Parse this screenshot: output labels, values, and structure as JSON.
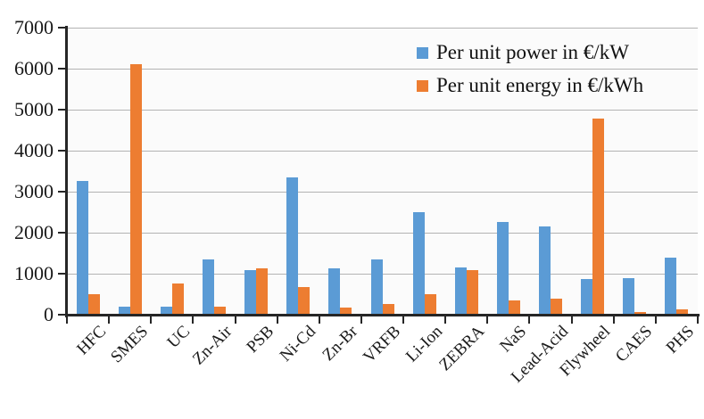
{
  "chart_data": {
    "type": "bar",
    "title": "",
    "xlabel": "",
    "ylabel": "",
    "categories": [
      "HFC",
      "SMES",
      "UC",
      "Zn-Air",
      "PSB",
      "Ni-Cd",
      "Zn-Br",
      "VRFB",
      "Li-Ion",
      "ZEBRA",
      "NaS",
      "Lead-Acid",
      "Flywheel",
      "CAES",
      "PHS"
    ],
    "series": [
      {
        "name": "Per unit power in €/kW",
        "color": "#5B9BD5",
        "values": [
          3250,
          200,
          200,
          1350,
          1080,
          3350,
          1130,
          1350,
          2500,
          1150,
          2250,
          2150,
          870,
          890,
          1400
        ]
      },
      {
        "name": "Per unit energy in €/kWh",
        "color": "#ED7D31",
        "values": [
          500,
          6100,
          750,
          200,
          1130,
          680,
          180,
          250,
          500,
          1080,
          340,
          400,
          4780,
          60,
          130
        ]
      }
    ],
    "ylim": [
      0,
      7000
    ],
    "ytick_interval": 1000,
    "yticks": [
      "0",
      "1000",
      "2000",
      "3000",
      "4000",
      "5000",
      "6000",
      "7000"
    ],
    "grid": true,
    "legend_position": "top-right",
    "colors": {
      "axis": "#262626",
      "gridline": "#b3b3b3",
      "background": "#ffffff"
    }
  }
}
